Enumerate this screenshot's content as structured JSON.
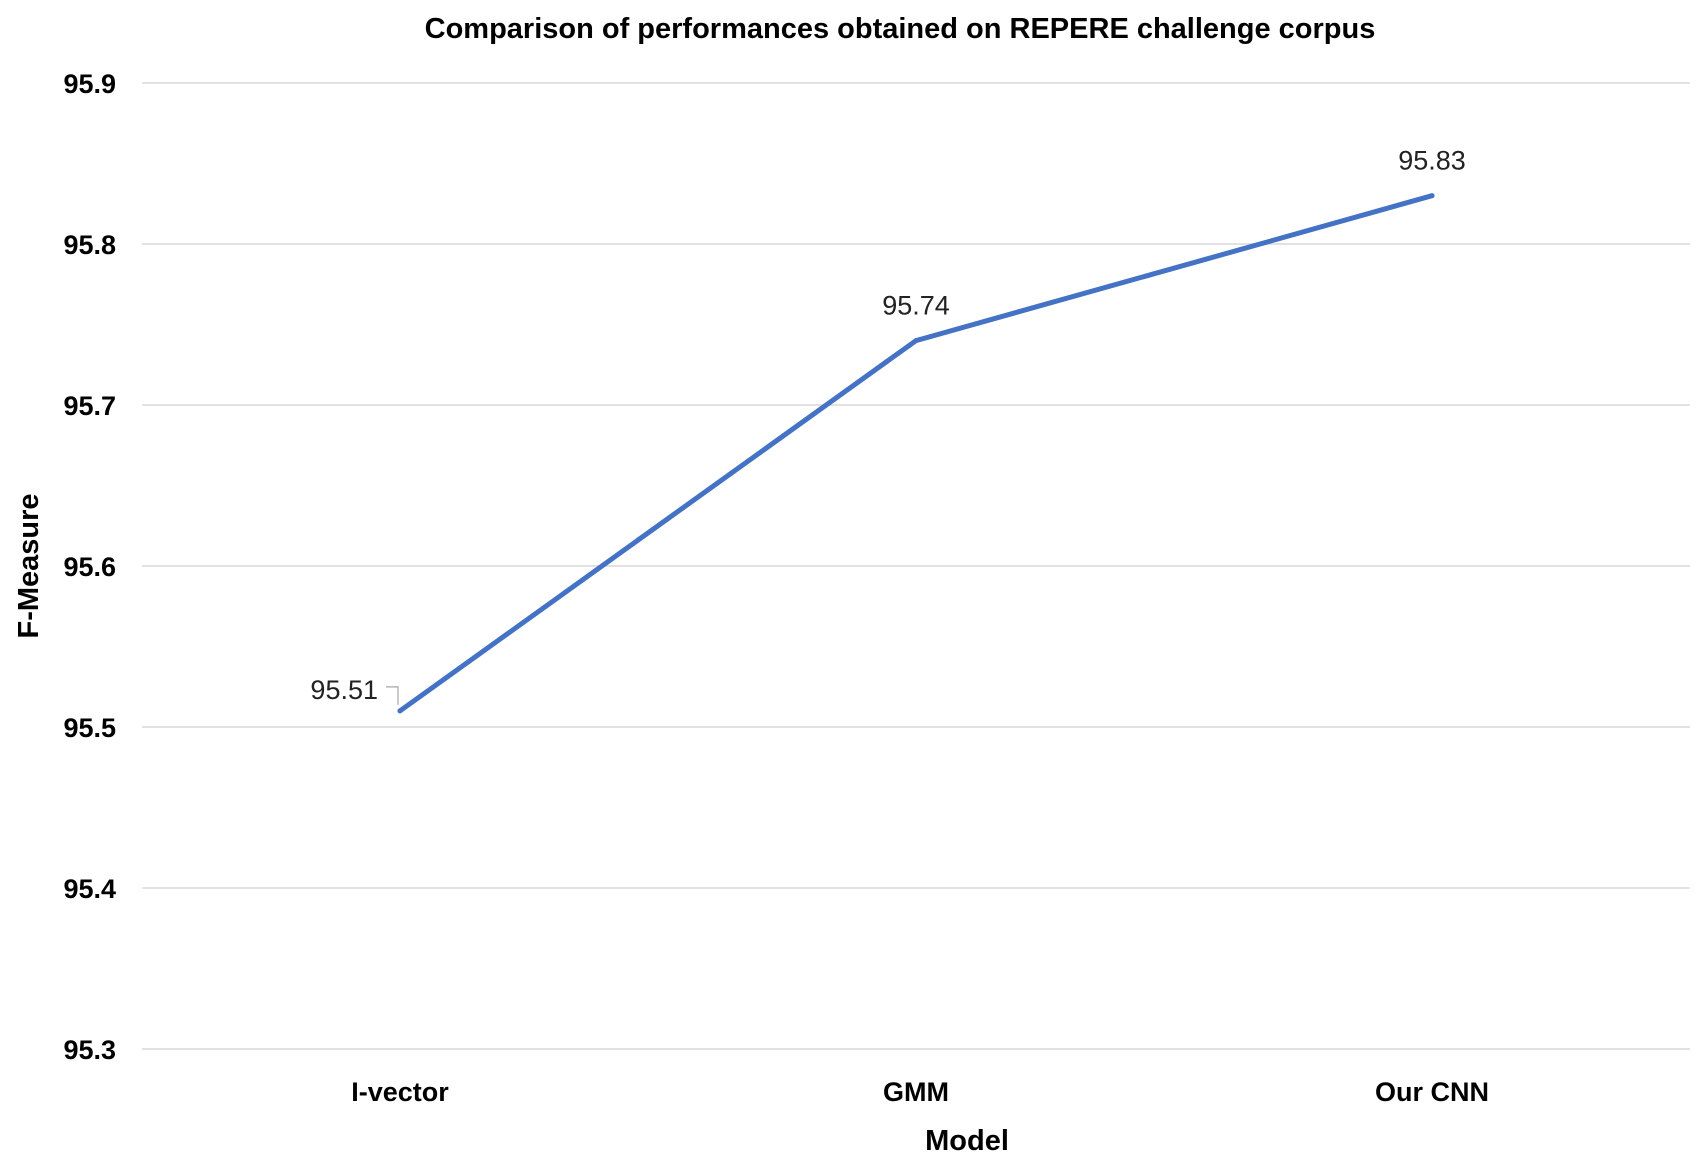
{
  "chart_data": {
    "type": "line",
    "title": "Comparison of performances obtained on REPERE challenge corpus",
    "xlabel": "Model",
    "ylabel": "F-Measure",
    "categories": [
      "I-vector",
      "GMM",
      "Our CNN"
    ],
    "series": [
      {
        "values": [
          95.51,
          95.74,
          95.83
        ],
        "data_labels": [
          "95.51",
          "95.74",
          "95.83"
        ],
        "color": "#4472C4"
      }
    ],
    "ylim": [
      95.3,
      95.9
    ],
    "yticks": [
      "95.3",
      "95.4",
      "95.5",
      "95.6",
      "95.7",
      "95.8",
      "95.9"
    ],
    "grid": true,
    "legend": "none"
  }
}
